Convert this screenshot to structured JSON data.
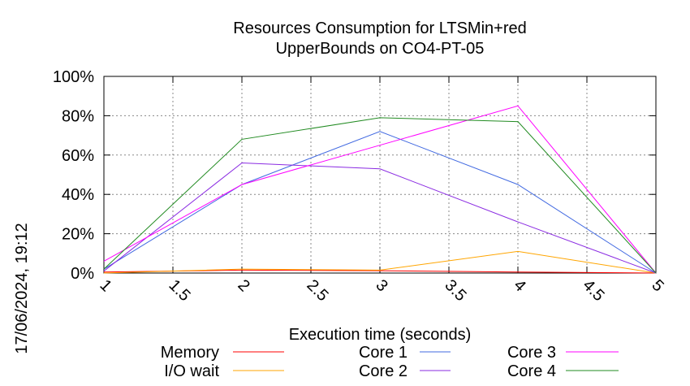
{
  "chart_data": {
    "type": "line",
    "title_line1": "Resources Consumption for LTSMin+red",
    "title_line2": "UpperBounds on CO4-PT-05",
    "xlabel": "Execution time (seconds)",
    "side_label": "17/06/2024, 19:12",
    "xlim": [
      1,
      5
    ],
    "ylim": [
      0,
      100
    ],
    "x_ticks": [
      "1",
      "1.5",
      "2",
      "2.5",
      "3",
      "3.5",
      "4",
      "4.5",
      "5"
    ],
    "y_ticks": [
      "0%",
      "20%",
      "40%",
      "60%",
      "80%",
      "100%"
    ],
    "grid": true,
    "legend_placement": "bottom",
    "x": [
      1,
      2,
      3,
      4,
      5
    ],
    "series": [
      {
        "name": "Memory",
        "color": "#ff0000",
        "values": [
          0.5,
          1.5,
          1.2,
          0.5,
          0
        ]
      },
      {
        "name": "I/O wait",
        "color": "#ffa500",
        "values": [
          0,
          2,
          1.5,
          11,
          0
        ]
      },
      {
        "name": "Core 1",
        "color": "#4169e1",
        "values": [
          2,
          45,
          72,
          45,
          0
        ]
      },
      {
        "name": "Core 2",
        "color": "#8a2be2",
        "values": [
          1,
          56,
          53,
          26,
          0
        ]
      },
      {
        "name": "Core 3",
        "color": "#ff00ff",
        "values": [
          6,
          45,
          65,
          85,
          0
        ]
      },
      {
        "name": "Core 4",
        "color": "#228b22",
        "values": [
          2,
          68,
          79,
          77,
          0
        ]
      }
    ]
  }
}
